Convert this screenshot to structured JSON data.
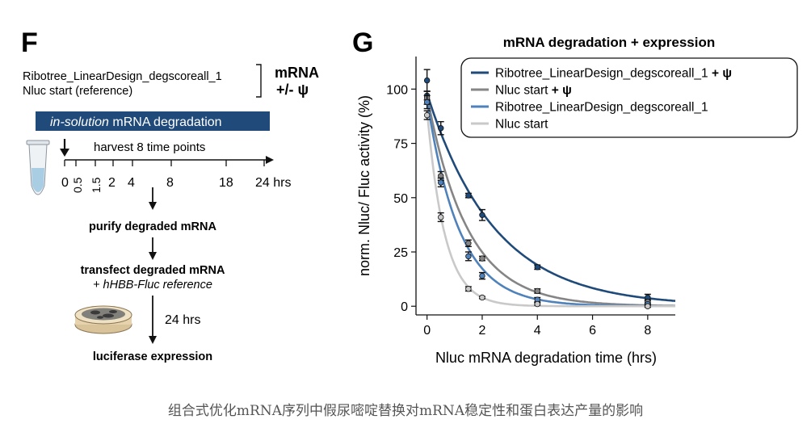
{
  "panel_f": {
    "label": "F",
    "constructs": [
      "Ribotree_LinearDesign_degscoreall_1",
      "Nluc start (reference)"
    ],
    "mod_title": "mRNA",
    "mod_sub": "+/- ψ",
    "banner_italic": "in-solution",
    "banner_rest": " mRNA degradation",
    "timeline_label": "harvest 8 time points",
    "time_points": [
      "0",
      "0.5",
      "1.5",
      "2",
      "4",
      "8",
      "18",
      "24 hrs"
    ],
    "step1": "purify degraded mRNA",
    "step2": "transfect degraded mRNA",
    "step2_sub": "+ hHBB-Fluc reference",
    "step3_time": "24 hrs",
    "step3": "luciferase expression",
    "colors": {
      "banner": "#1f4a7a"
    }
  },
  "panel_g": {
    "label": "G"
  },
  "chart_data": {
    "type": "scatter",
    "title": "mRNA degradation + expression",
    "xlabel": "Nluc mRNA degradation time (hrs)",
    "ylabel": "norm. Nluc/ Fluc activity (%)",
    "xlim": [
      -0.4,
      9
    ],
    "ylim": [
      -4,
      115
    ],
    "xticks": [
      0,
      2,
      4,
      6,
      8
    ],
    "yticks": [
      0,
      25,
      50,
      75,
      100
    ],
    "legend_position": "top-right",
    "series": [
      {
        "name": "Ribotree_LinearDesign_degscoreall_1",
        "legend_suffix": " + ψ",
        "color": "#1f4a7a",
        "points": [
          {
            "x": 0,
            "y": 104,
            "err": 5
          },
          {
            "x": 0,
            "y": 97,
            "err": 2
          },
          {
            "x": 0.5,
            "y": 82,
            "err": 3
          },
          {
            "x": 1.5,
            "y": 51,
            "err": 1
          },
          {
            "x": 2,
            "y": 42,
            "err": 2.5
          },
          {
            "x": 4,
            "y": 18,
            "err": 1
          },
          {
            "x": 8,
            "y": 4,
            "err": 1.5
          }
        ],
        "fit": {
          "a": 98,
          "k": 0.41
        }
      },
      {
        "name": "Nluc start",
        "legend_suffix": " + ψ",
        "color": "#858585",
        "points": [
          {
            "x": 0,
            "y": 96,
            "err": 3
          },
          {
            "x": 0.5,
            "y": 60,
            "err": 2
          },
          {
            "x": 1.5,
            "y": 29,
            "err": 1.5
          },
          {
            "x": 2,
            "y": 22,
            "err": 1
          },
          {
            "x": 4,
            "y": 7,
            "err": 1
          },
          {
            "x": 8,
            "y": 2,
            "err": 1
          }
        ],
        "fit": {
          "a": 97,
          "k": 0.68
        }
      },
      {
        "name": "Ribotree_LinearDesign_degscoreall_1",
        "legend_suffix": "",
        "color": "#4f82bb",
        "points": [
          {
            "x": 0,
            "y": 94,
            "err": 3
          },
          {
            "x": 0.5,
            "y": 57,
            "err": 2
          },
          {
            "x": 1.5,
            "y": 23,
            "err": 2
          },
          {
            "x": 2,
            "y": 14,
            "err": 1.5
          },
          {
            "x": 4,
            "y": 3,
            "err": 1
          },
          {
            "x": 8,
            "y": 1,
            "err": 0.5
          }
        ],
        "fit": {
          "a": 95,
          "k": 0.85
        }
      },
      {
        "name": "Nluc start",
        "legend_suffix": "",
        "color": "#c9c9c9",
        "points": [
          {
            "x": 0,
            "y": 88,
            "err": 2
          },
          {
            "x": 0.5,
            "y": 41,
            "err": 2
          },
          {
            "x": 1.5,
            "y": 8,
            "err": 1
          },
          {
            "x": 2,
            "y": 4,
            "err": 0.5
          },
          {
            "x": 4,
            "y": 1,
            "err": 0.5
          },
          {
            "x": 8,
            "y": 0,
            "err": 0.5
          }
        ],
        "fit": {
          "a": 90,
          "k": 1.55
        }
      }
    ]
  },
  "caption": "组合式优化mRNA序列中假尿嘧啶替换对mRNA稳定性和蛋白表达产量的影响"
}
